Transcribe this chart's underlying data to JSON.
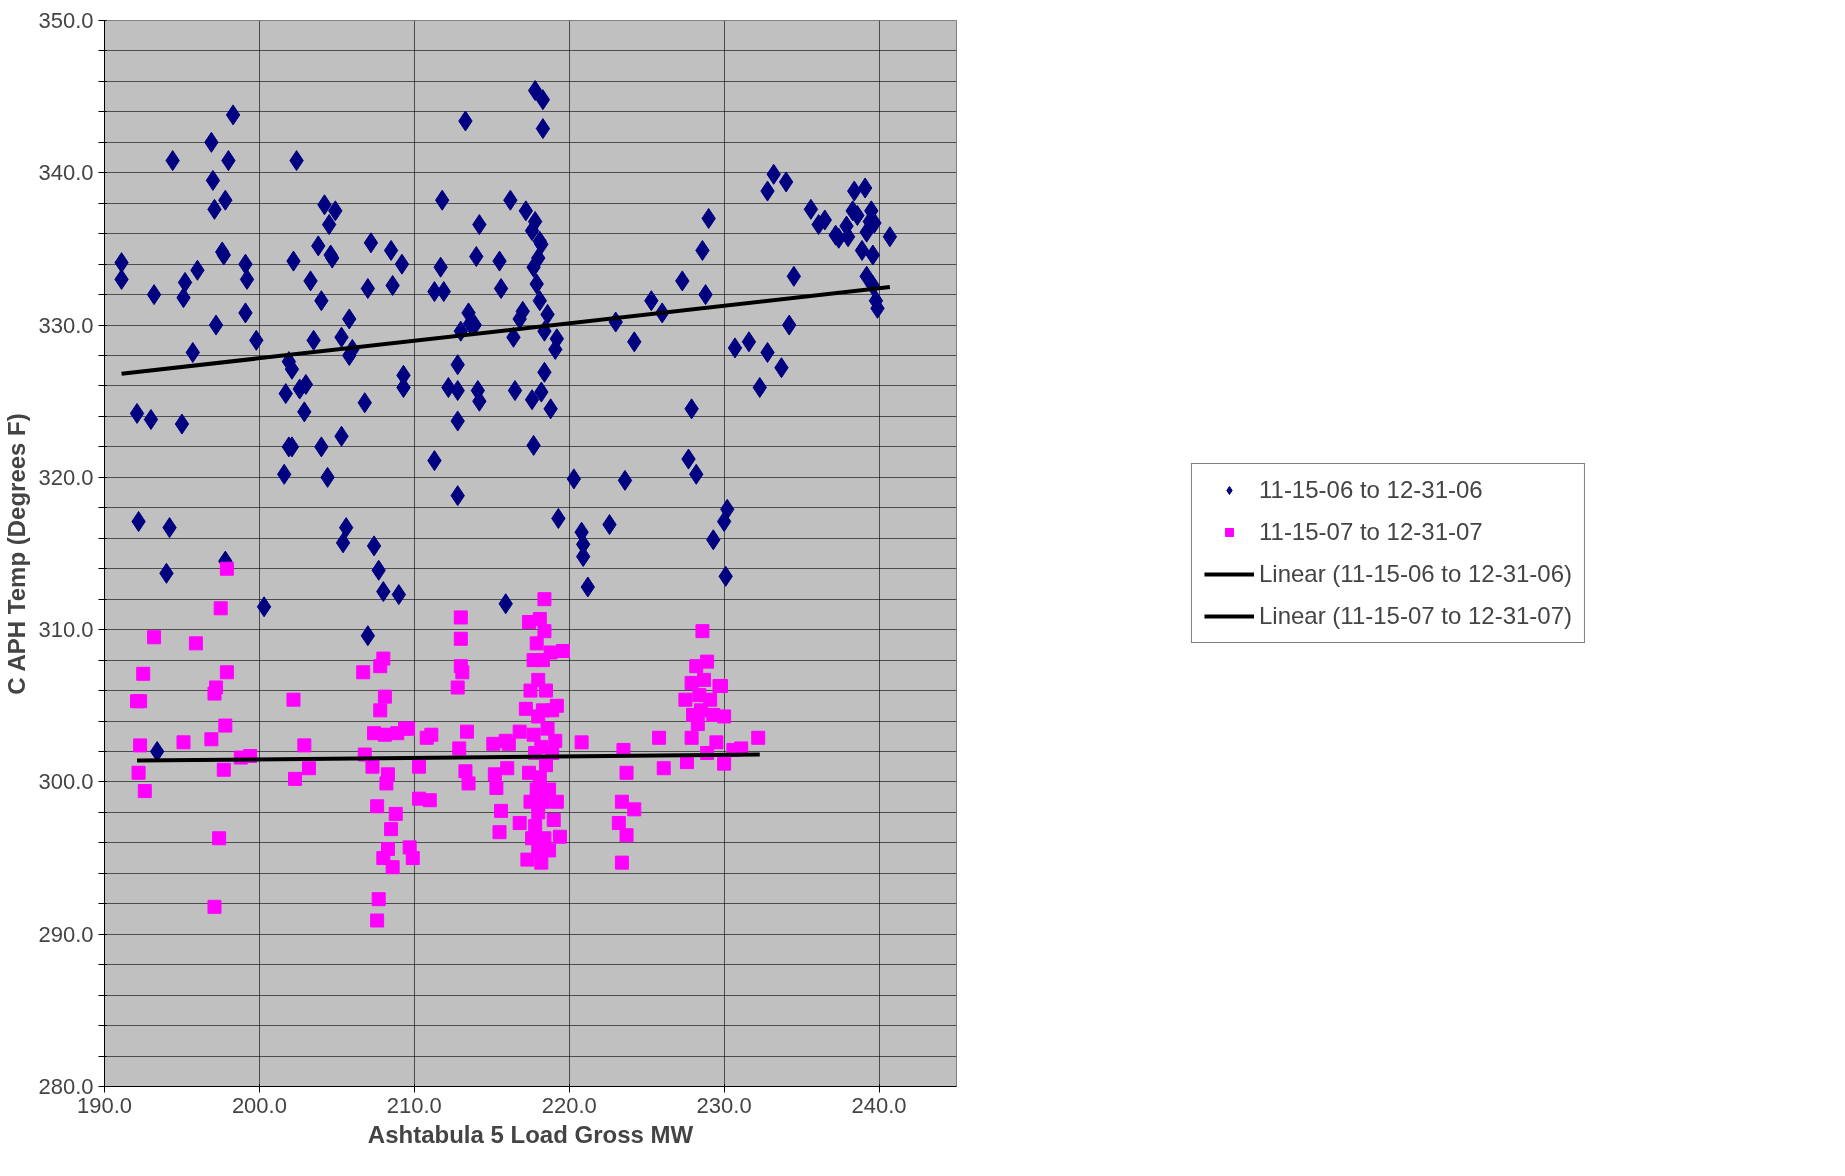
{
  "chart_data": {
    "type": "scatter",
    "xlabel": "Ashtabula 5 Load Gross MW",
    "ylabel": "C APH Temp (Degrees F)",
    "xlim": [
      190,
      245
    ],
    "ylim": [
      280,
      350
    ],
    "xticks": [
      {
        "value": 190,
        "label": "190.0"
      },
      {
        "value": 200,
        "label": "200.0"
      },
      {
        "value": 210,
        "label": "210.0"
      },
      {
        "value": 220,
        "label": "220.0"
      },
      {
        "value": 230,
        "label": "230.0"
      },
      {
        "value": 240,
        "label": "240.0"
      }
    ],
    "yticks": [
      {
        "value": 280,
        "label": "280.0"
      },
      {
        "value": 282,
        "label": null
      },
      {
        "value": 284,
        "label": null
      },
      {
        "value": 286,
        "label": null
      },
      {
        "value": 288,
        "label": null
      },
      {
        "value": 290,
        "label": "290.0"
      },
      {
        "value": 292,
        "label": null
      },
      {
        "value": 294,
        "label": null
      },
      {
        "value": 296,
        "label": null
      },
      {
        "value": 298,
        "label": null
      },
      {
        "value": 300,
        "label": "300.0"
      },
      {
        "value": 302,
        "label": null
      },
      {
        "value": 304,
        "label": null
      },
      {
        "value": 306,
        "label": null
      },
      {
        "value": 308,
        "label": null
      },
      {
        "value": 310,
        "label": "310.0"
      },
      {
        "value": 312,
        "label": null
      },
      {
        "value": 314,
        "label": null
      },
      {
        "value": 316,
        "label": null
      },
      {
        "value": 318,
        "label": null
      },
      {
        "value": 320,
        "label": "320.0"
      },
      {
        "value": 322,
        "label": null
      },
      {
        "value": 324,
        "label": null
      },
      {
        "value": 326,
        "label": null
      },
      {
        "value": 328,
        "label": null
      },
      {
        "value": 330,
        "label": "330.0"
      },
      {
        "value": 332,
        "label": null
      },
      {
        "value": 334,
        "label": null
      },
      {
        "value": 336,
        "label": null
      },
      {
        "value": 338,
        "label": null
      },
      {
        "value": 340,
        "label": "340.0"
      },
      {
        "value": 342,
        "label": null
      },
      {
        "value": 344,
        "label": null
      },
      {
        "value": 346,
        "label": null
      },
      {
        "value": 348,
        "label": null
      },
      {
        "value": 350,
        "label": "350.0"
      }
    ],
    "grid": true,
    "legend": "right",
    "series": [
      {
        "name": "11-15-06 to 12-31-06",
        "marker": "diamond",
        "color": "#000080",
        "x": [
          191.1,
          191.1,
          192.1,
          192.2,
          193.0,
          193.2,
          193.4,
          194.0,
          194.2,
          194.4,
          195.0,
          195.1,
          195.2,
          195.7,
          196.0,
          196.9,
          197.0,
          197.1,
          197.2,
          197.6,
          197.7,
          197.8,
          197.8,
          198.0,
          198.3,
          199.1,
          199.2,
          199.1,
          199.8,
          200.3,
          201.6,
          201.9,
          201.9,
          202.1,
          202.2,
          202.1,
          201.7,
          202.4,
          202.6,
          202.9,
          203.0,
          203.3,
          203.5,
          203.8,
          204.0,
          204.0,
          204.2,
          204.4,
          204.5,
          204.6,
          204.7,
          204.9,
          205.3,
          205.3,
          205.6,
          205.4,
          205.8,
          205.8,
          206.0,
          206.8,
          207.0,
          207.0,
          207.2,
          207.4,
          207.7,
          208.0,
          208.5,
          208.6,
          209.0,
          209.2,
          209.3,
          209.3,
          211.3,
          211.3,
          211.7,
          211.8,
          211.9,
          212.2,
          212.8,
          212.8,
          212.8,
          212.8,
          213.0,
          213.3,
          213.5,
          213.6,
          213.9,
          214.0,
          214.1,
          214.2,
          214.2,
          215.5,
          215.6,
          215.9,
          216.2,
          216.4,
          216.5,
          216.8,
          217.0,
          217.2,
          217.6,
          217.6,
          217.7,
          217.7,
          217.8,
          217.8,
          217.9,
          218.0,
          218.1,
          218.1,
          218.2,
          218.2,
          218.3,
          218.3,
          218.4,
          218.4,
          218.6,
          218.8,
          219.1,
          219.2,
          219.3,
          220.3,
          220.8,
          220.9,
          220.9,
          221.2,
          222.6,
          223.0,
          223.6,
          224.2,
          225.3,
          226.0,
          227.3,
          227.7,
          227.9,
          228.2,
          228.6,
          228.8,
          229.0,
          229.3,
          230.0,
          230.2,
          230.1,
          230.7,
          231.6,
          232.3,
          232.8,
          232.8,
          233.2,
          233.7,
          234.0,
          234.2,
          234.5,
          235.6,
          236.1,
          236.5,
          237.2,
          237.4,
          237.9,
          238.0,
          238.3,
          238.4,
          238.6,
          238.9,
          239.1,
          239.2,
          239.2,
          239.4,
          239.5,
          239.6,
          239.6,
          239.7,
          239.8,
          239.9,
          240.7
        ],
        "values": [
          334.1,
          333.0,
          324.2,
          317.1,
          323.8,
          332.0,
          302.0,
          313.7,
          316.7,
          340.8,
          323.5,
          331.8,
          332.8,
          328.2,
          333.6,
          342.0,
          339.5,
          337.6,
          330.0,
          334.8,
          334.6,
          338.2,
          314.5,
          340.8,
          343.8,
          334.0,
          333.0,
          330.8,
          329.0,
          311.5,
          320.2,
          327.6,
          322.0,
          322.0,
          334.2,
          327.1,
          325.5,
          340.8,
          325.8,
          324.3,
          326.1,
          332.9,
          329.0,
          335.2,
          322.0,
          331.6,
          337.9,
          320.0,
          336.6,
          334.6,
          334.4,
          337.5,
          322.7,
          329.2,
          316.7,
          315.7,
          330.4,
          328.0,
          328.4,
          324.9,
          332.4,
          309.6,
          335.4,
          315.5,
          313.9,
          312.5,
          334.9,
          332.6,
          312.3,
          334.0,
          326.7,
          325.9,
          321.1,
          332.2,
          333.8,
          338.2,
          332.2,
          325.9,
          323.7,
          325.7,
          327.4,
          318.8,
          329.6,
          343.4,
          330.8,
          330.1,
          330.0,
          334.5,
          325.7,
          325.0,
          336.6,
          334.2,
          332.4,
          311.7,
          338.2,
          329.2,
          325.7,
          330.4,
          330.9,
          337.5,
          325.1,
          336.2,
          333.8,
          322.1,
          345.4,
          336.8,
          332.7,
          334.4,
          335.5,
          331.6,
          325.6,
          335.3,
          344.8,
          342.9,
          326.9,
          329.6,
          330.7,
          324.5,
          328.4,
          329.1,
          317.3,
          319.9,
          316.4,
          315.6,
          314.8,
          312.8,
          316.9,
          330.2,
          319.8,
          328.9,
          331.6,
          330.8,
          332.9,
          321.2,
          324.5,
          320.2,
          334.9,
          332.0,
          337.0,
          315.9,
          317.1,
          317.9,
          313.5,
          328.5,
          328.9,
          325.9,
          338.8,
          328.2,
          339.9,
          327.2,
          339.4,
          330.0,
          333.2,
          337.6,
          336.6,
          336.9,
          335.9,
          335.7,
          336.5,
          335.8,
          337.5,
          338.8,
          337.2,
          334.9,
          339.0,
          333.2,
          336.1,
          336.8,
          337.5,
          334.6,
          332.6,
          336.7,
          331.6,
          331.1,
          335.8
        ]
      },
      {
        "name": "11-15-07 to 12-31-07",
        "marker": "square",
        "color": "#ff00ff",
        "x": [
          192.1,
          192.3,
          192.5,
          192.3,
          192.2,
          192.6,
          193.2,
          195.1,
          195.9,
          196.9,
          197.1,
          197.2,
          197.1,
          197.4,
          197.5,
          197.7,
          197.8,
          197.9,
          197.9,
          198.8,
          199.4,
          202.2,
          202.3,
          202.9,
          203.2,
          206.7,
          206.8,
          207.4,
          207.3,
          207.6,
          207.6,
          207.7,
          207.8,
          207.8,
          208.0,
          208.1,
          208.1,
          208.0,
          208.2,
          208.3,
          208.3,
          208.5,
          208.6,
          208.8,
          208.9,
          209.4,
          209.6,
          209.7,
          209.9,
          210.3,
          210.3,
          210.8,
          211.1,
          211.0,
          212.8,
          212.9,
          213.0,
          213.0,
          213.0,
          213.1,
          213.3,
          213.4,
          213.5,
          215.1,
          215.2,
          215.3,
          215.5,
          215.6,
          215.9,
          216.0,
          216.1,
          216.8,
          216.8,
          217.2,
          217.3,
          217.4,
          217.4,
          217.5,
          217.5,
          217.6,
          217.7,
          217.7,
          217.8,
          217.8,
          217.9,
          217.9,
          218.0,
          218.0,
          218.0,
          218.0,
          218.1,
          218.1,
          218.2,
          218.2,
          218.3,
          218.3,
          218.3,
          218.4,
          218.4,
          218.4,
          218.5,
          218.5,
          218.6,
          218.7,
          218.7,
          218.8,
          218.9,
          218.9,
          219.0,
          219.1,
          219.2,
          219.2,
          219.4,
          219.6,
          220.8,
          223.2,
          223.4,
          223.4,
          223.5,
          223.7,
          223.7,
          224.2,
          225.8,
          226.1,
          227.5,
          227.6,
          227.9,
          227.9,
          228.0,
          228.2,
          228.3,
          228.4,
          228.5,
          228.6,
          228.7,
          228.9,
          228.9,
          229.1,
          229.3,
          229.5,
          229.7,
          229.8,
          230.0,
          230.0,
          230.6,
          231.1,
          232.2
        ],
        "values": [
          305.3,
          305.3,
          307.1,
          302.4,
          300.6,
          299.4,
          309.5,
          302.6,
          309.1,
          302.8,
          305.8,
          306.2,
          291.8,
          296.3,
          311.4,
          300.8,
          303.7,
          307.2,
          314.0,
          301.6,
          301.7,
          305.4,
          300.2,
          302.4,
          300.9,
          307.2,
          301.8,
          303.2,
          301.0,
          298.4,
          290.9,
          292.3,
          304.7,
          307.6,
          308.1,
          305.6,
          303.1,
          295.0,
          299.9,
          300.5,
          295.6,
          296.9,
          294.4,
          297.9,
          303.2,
          303.5,
          303.5,
          295.7,
          295.0,
          298.9,
          301.0,
          302.9,
          303.1,
          298.8,
          306.2,
          302.2,
          310.8,
          309.4,
          307.6,
          307.2,
          300.7,
          303.3,
          299.9,
          302.5,
          300.5,
          299.6,
          296.7,
          298.1,
          302.7,
          300.9,
          302.5,
          303.3,
          297.3,
          304.8,
          294.9,
          310.5,
          300.6,
          298.7,
          306.0,
          296.3,
          308.0,
          303.1,
          301.9,
          297.1,
          309.1,
          299.5,
          295.5,
          306.7,
          304.3,
          298.0,
          310.7,
          300.3,
          302.3,
          294.7,
          308.0,
          304.7,
          298.7,
          312.0,
          309.9,
          296.3,
          301.1,
          306.0,
          303.5,
          299.5,
          295.5,
          308.5,
          304.7,
          301.9,
          297.5,
          302.7,
          298.7,
          305.0,
          296.4,
          308.6,
          302.6,
          297.3,
          298.7,
          294.7,
          302.1,
          296.5,
          300.6,
          298.2,
          302.9,
          300.9,
          305.4,
          301.3,
          306.5,
          302.9,
          304.4,
          307.6,
          303.8,
          305.7,
          304.7,
          309.9,
          306.7,
          307.9,
          301.9,
          305.4,
          304.4,
          302.6,
          306.3,
          306.3,
          304.3,
          301.2,
          302.1,
          302.2,
          302.9
        ]
      },
      {
        "name": "Linear (11-15-06 to 12-31-06)",
        "type": "line",
        "marker": "none",
        "line_style": "solid",
        "color": "#000000",
        "x": [
          191.1,
          240.7
        ],
        "values": [
          326.8,
          332.5
        ]
      },
      {
        "name": "Linear (11-15-07 to 12-31-07)",
        "type": "line",
        "marker": "none",
        "line_style": "solid",
        "color": "#000000",
        "x": [
          192.1,
          232.3
        ],
        "values": [
          301.4,
          301.8
        ]
      }
    ]
  }
}
